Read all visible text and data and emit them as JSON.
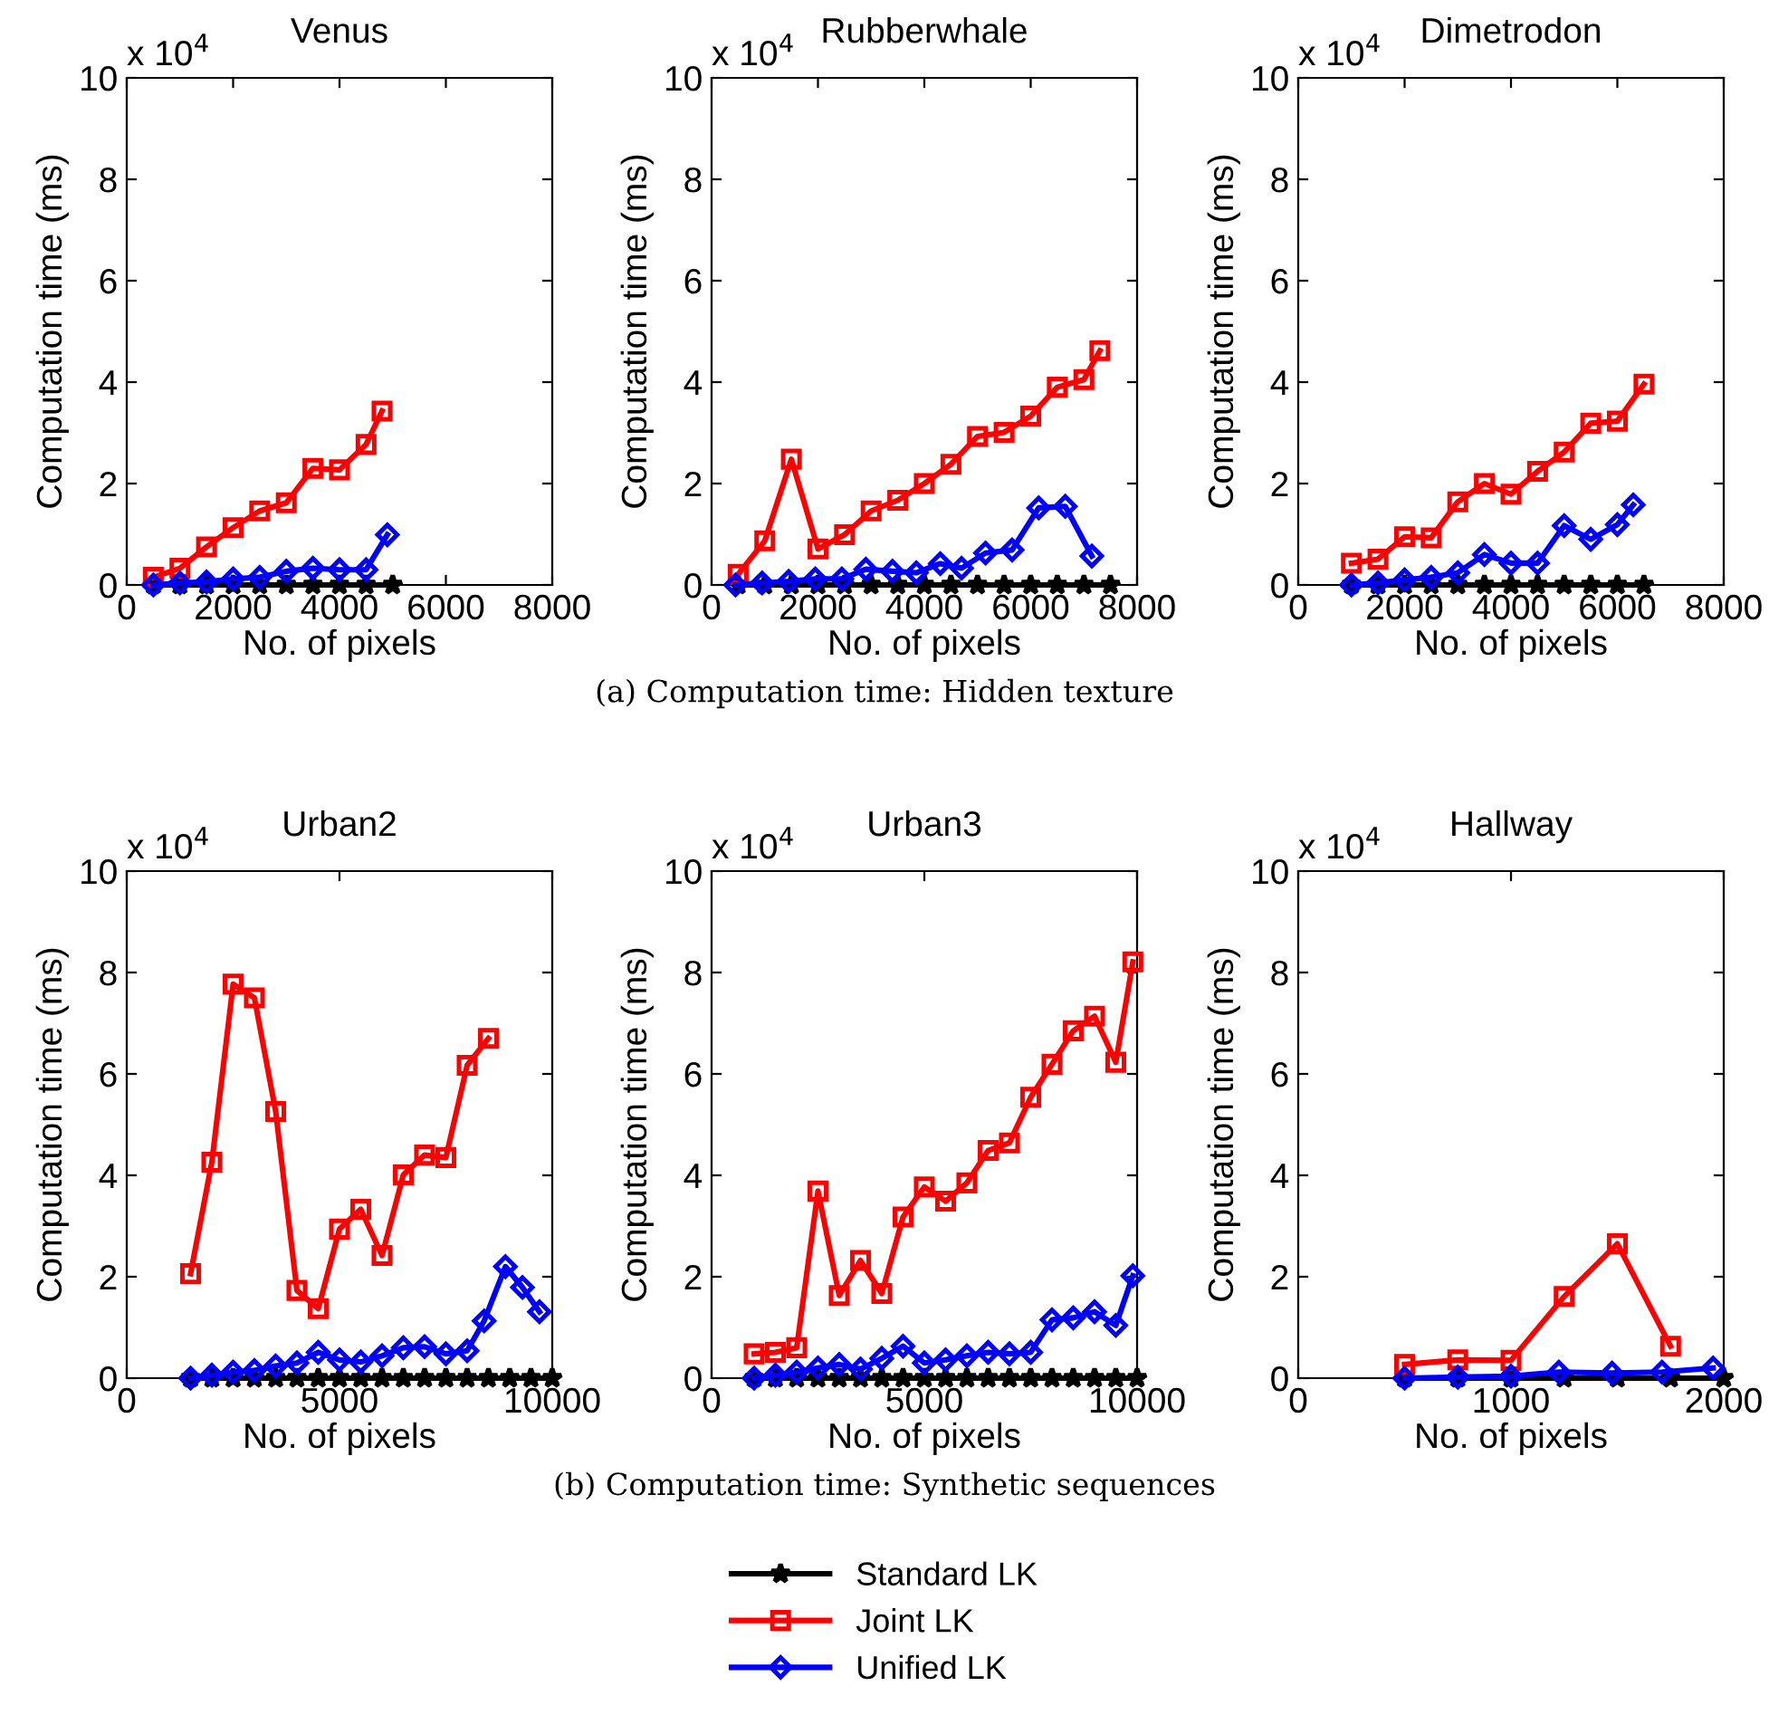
{
  "chart_data": [
    {
      "type": "line",
      "title": "Venus",
      "xlabel": "No. of pixels",
      "ylabel": "Computation time (ms)",
      "xlim": [
        0,
        8000
      ],
      "xticks": [
        0,
        2000,
        4000,
        6000,
        8000
      ],
      "ylim": [
        0,
        10
      ],
      "yticks": [
        0,
        2,
        4,
        6,
        8,
        10
      ],
      "annotations": [
        "x 10$^{4}$"
      ],
      "legend": "bottom",
      "grid": false,
      "series": [
        {
          "name": "Standard LK",
          "color": "#000000",
          "marker": "star",
          "x": [
            500,
            1000,
            1500,
            2000,
            2500,
            3000,
            3500,
            4000,
            4500,
            5000
          ],
          "values": [
            0,
            0,
            0,
            0,
            0,
            0,
            0,
            0,
            0,
            0
          ]
        },
        {
          "name": "Joint LK",
          "color": "#ff0000",
          "marker": "square",
          "x": [
            500,
            1000,
            1500,
            2000,
            2500,
            3000,
            3500,
            4000,
            4500,
            4800
          ],
          "values": [
            0.15,
            0.33,
            0.75,
            1.13,
            1.46,
            1.62,
            2.3,
            2.27,
            2.77,
            3.43
          ]
        },
        {
          "name": "Unified LK",
          "color": "#0000ff",
          "marker": "diamond",
          "x": [
            500,
            1000,
            1500,
            2000,
            2500,
            3000,
            3500,
            4000,
            4500,
            4900
          ],
          "values": [
            0,
            0.04,
            0.06,
            0.12,
            0.15,
            0.27,
            0.33,
            0.3,
            0.3,
            0.99
          ]
        }
      ]
    },
    {
      "type": "line",
      "title": "Rubberwhale",
      "xlabel": "No. of pixels",
      "ylabel": "Computation time (ms)",
      "xlim": [
        0,
        8000
      ],
      "xticks": [
        0,
        2000,
        4000,
        6000,
        8000
      ],
      "ylim": [
        0,
        10
      ],
      "yticks": [
        0,
        2,
        4,
        6,
        8,
        10
      ],
      "annotations": [
        "x 10$^{4}$",
        "(a) Computation time: Hidden texture"
      ],
      "grid": false,
      "series": [
        {
          "color": "#000000",
          "marker": "star",
          "x": [
            500,
            1000,
            1500,
            2000,
            2500,
            3000,
            3500,
            4000,
            4500,
            5000,
            5500,
            6000,
            6500,
            7000,
            7500
          ],
          "values": [
            0,
            0,
            0,
            0,
            0,
            0,
            0,
            0,
            0,
            0,
            0,
            0,
            0,
            0,
            0
          ]
        },
        {
          "color": "#ff0000",
          "marker": "square",
          "x": [
            500,
            1000,
            1500,
            2000,
            2500,
            3000,
            3500,
            4000,
            4500,
            5000,
            5500,
            6000,
            6500,
            7000,
            7300
          ],
          "values": [
            0.21,
            0.87,
            2.48,
            0.71,
            0.99,
            1.46,
            1.67,
            2.0,
            2.38,
            2.93,
            3.01,
            3.33,
            3.9,
            4.05,
            4.62
          ]
        },
        {
          "color": "#0000ff",
          "marker": "diamond",
          "x": [
            450,
            950,
            1450,
            1950,
            2450,
            2900,
            3400,
            3850,
            4300,
            4700,
            5150,
            5650,
            6150,
            6650,
            7150
          ],
          "values": [
            0,
            0.04,
            0.07,
            0.12,
            0.12,
            0.31,
            0.27,
            0.24,
            0.42,
            0.33,
            0.63,
            0.69,
            1.52,
            1.55,
            0.57
          ]
        }
      ]
    },
    {
      "type": "line",
      "title": "Dimetrodon",
      "xlabel": "No. of pixels",
      "ylabel": "Computation time (ms)",
      "xlim": [
        0,
        8000
      ],
      "xticks": [
        0,
        2000,
        4000,
        6000,
        8000
      ],
      "ylim": [
        0,
        10
      ],
      "yticks": [
        0,
        2,
        4,
        6,
        8,
        10
      ],
      "annotations": [
        "x 10$^{4}$"
      ],
      "grid": false,
      "series": [
        {
          "color": "#000000",
          "marker": "star",
          "x": [
            1000,
            1500,
            2000,
            2500,
            3000,
            3500,
            4000,
            4500,
            5000,
            5500,
            6000,
            6500
          ],
          "values": [
            0,
            0,
            0,
            0,
            0,
            0,
            0,
            0,
            0,
            0,
            0,
            0
          ]
        },
        {
          "color": "#ff0000",
          "marker": "square",
          "x": [
            1000,
            1500,
            2000,
            2500,
            3000,
            3500,
            4000,
            4500,
            5000,
            5500,
            6000,
            6500
          ],
          "values": [
            0.43,
            0.51,
            0.95,
            0.93,
            1.64,
            2.0,
            1.79,
            2.24,
            2.62,
            3.19,
            3.23,
            3.96
          ]
        },
        {
          "color": "#0000ff",
          "marker": "diamond",
          "x": [
            1000,
            1500,
            2000,
            2500,
            3000,
            3500,
            4000,
            4500,
            5000,
            5500,
            6000,
            6300
          ],
          "values": [
            0,
            0.04,
            0.1,
            0.15,
            0.24,
            0.6,
            0.43,
            0.43,
            1.17,
            0.9,
            1.19,
            1.58
          ]
        }
      ]
    },
    {
      "type": "line",
      "title": "Urban2",
      "xlabel": "No. of pixels",
      "ylabel": "Computation time (ms)",
      "xlim": [
        0,
        10000
      ],
      "xticks": [
        0,
        5000,
        10000
      ],
      "ylim": [
        0,
        10
      ],
      "yticks": [
        0,
        2,
        4,
        6,
        8,
        10
      ],
      "annotations": [
        "x 10$^{4}$"
      ],
      "grid": false,
      "series": [
        {
          "color": "#000000",
          "marker": "star",
          "x": [
            1500,
            2000,
            2500,
            3000,
            3500,
            4000,
            4500,
            5000,
            5500,
            6000,
            6500,
            7000,
            7500,
            8000,
            8500,
            9000,
            9500,
            10000
          ],
          "values": [
            0,
            0,
            0,
            0,
            0,
            0,
            0,
            0,
            0,
            0,
            0,
            0,
            0,
            0,
            0,
            0,
            0,
            0
          ]
        },
        {
          "color": "#ff0000",
          "marker": "square",
          "x": [
            1500,
            2000,
            2500,
            3000,
            3500,
            4000,
            4500,
            5000,
            5500,
            6000,
            6500,
            7000,
            7500,
            8000,
            8500
          ],
          "values": [
            2.06,
            4.26,
            7.77,
            7.5,
            5.26,
            1.73,
            1.37,
            2.94,
            3.33,
            2.42,
            4.01,
            4.4,
            4.35,
            6.17,
            6.7
          ]
        },
        {
          "color": "#0000ff",
          "marker": "diamond",
          "x": [
            1500,
            2000,
            2500,
            3000,
            3500,
            4000,
            4500,
            5000,
            5500,
            6000,
            6500,
            7000,
            7500,
            8000,
            8400,
            8900,
            9300,
            9700
          ],
          "values": [
            0,
            0.06,
            0.12,
            0.15,
            0.24,
            0.3,
            0.51,
            0.36,
            0.32,
            0.44,
            0.6,
            0.62,
            0.48,
            0.54,
            1.13,
            2.2,
            1.79,
            1.31
          ]
        }
      ]
    },
    {
      "type": "line",
      "title": "Urban3",
      "xlabel": "No. of pixels",
      "ylabel": "Computation time (ms)",
      "xlim": [
        0,
        10000
      ],
      "xticks": [
        0,
        5000,
        10000
      ],
      "ylim": [
        0,
        10
      ],
      "yticks": [
        0,
        2,
        4,
        6,
        8,
        10
      ],
      "annotations": [
        "x 10$^{4}$",
        "(b) Computation time: Synthetic sequences"
      ],
      "grid": false,
      "series": [
        {
          "color": "#000000",
          "marker": "star",
          "x": [
            1000,
            1500,
            2000,
            2500,
            3000,
            3500,
            4000,
            4500,
            5000,
            5500,
            6000,
            6500,
            7000,
            7500,
            8000,
            8500,
            9000,
            9500,
            10000
          ],
          "values": [
            0,
            0,
            0,
            0,
            0,
            0,
            0,
            0,
            0,
            0,
            0,
            0,
            0,
            0,
            0,
            0,
            0,
            0,
            0
          ]
        },
        {
          "color": "#ff0000",
          "marker": "square",
          "x": [
            1000,
            1500,
            2000,
            2500,
            3000,
            3500,
            4000,
            4500,
            5000,
            5500,
            6000,
            6500,
            7000,
            7500,
            8000,
            8500,
            9000,
            9500,
            9900
          ],
          "values": [
            0.48,
            0.51,
            0.6,
            3.69,
            1.63,
            2.32,
            1.67,
            3.18,
            3.77,
            3.49,
            3.85,
            4.49,
            4.64,
            5.54,
            6.19,
            6.85,
            7.14,
            6.23,
            8.21
          ]
        },
        {
          "color": "#0000ff",
          "marker": "diamond",
          "x": [
            1000,
            1500,
            2000,
            2500,
            3000,
            3500,
            4000,
            4500,
            5000,
            5500,
            6000,
            6500,
            7000,
            7500,
            8000,
            8500,
            9000,
            9500,
            9900
          ],
          "values": [
            0,
            0.06,
            0.12,
            0.2,
            0.27,
            0.18,
            0.39,
            0.63,
            0.3,
            0.36,
            0.44,
            0.51,
            0.48,
            0.51,
            1.15,
            1.19,
            1.31,
            1.04,
            2.02
          ]
        }
      ]
    },
    {
      "type": "line",
      "title": "Hallway",
      "xlabel": "No. of pixels",
      "ylabel": "Computation time (ms)",
      "xlim": [
        0,
        2000
      ],
      "xticks": [
        0,
        1000,
        2000
      ],
      "ylim": [
        0,
        10
      ],
      "yticks": [
        0,
        2,
        4,
        6,
        8,
        10
      ],
      "annotations": [
        "x 10$^{4}$"
      ],
      "grid": false,
      "series": [
        {
          "color": "#000000",
          "marker": "star",
          "x": [
            500,
            750,
            1000,
            1250,
            1500,
            1750,
            2000
          ],
          "values": [
            0,
            0,
            0,
            0,
            0,
            0,
            0
          ]
        },
        {
          "color": "#ff0000",
          "marker": "square",
          "x": [
            500,
            750,
            1000,
            1250,
            1500,
            1750
          ],
          "values": [
            0.27,
            0.36,
            0.35,
            1.61,
            2.65,
            0.63
          ]
        },
        {
          "color": "#0000ff",
          "marker": "diamond",
          "x": [
            500,
            750,
            1000,
            1225,
            1475,
            1710,
            1950
          ],
          "values": [
            0,
            0.02,
            0.04,
            0.12,
            0.1,
            0.12,
            0.2
          ]
        }
      ]
    }
  ]
}
